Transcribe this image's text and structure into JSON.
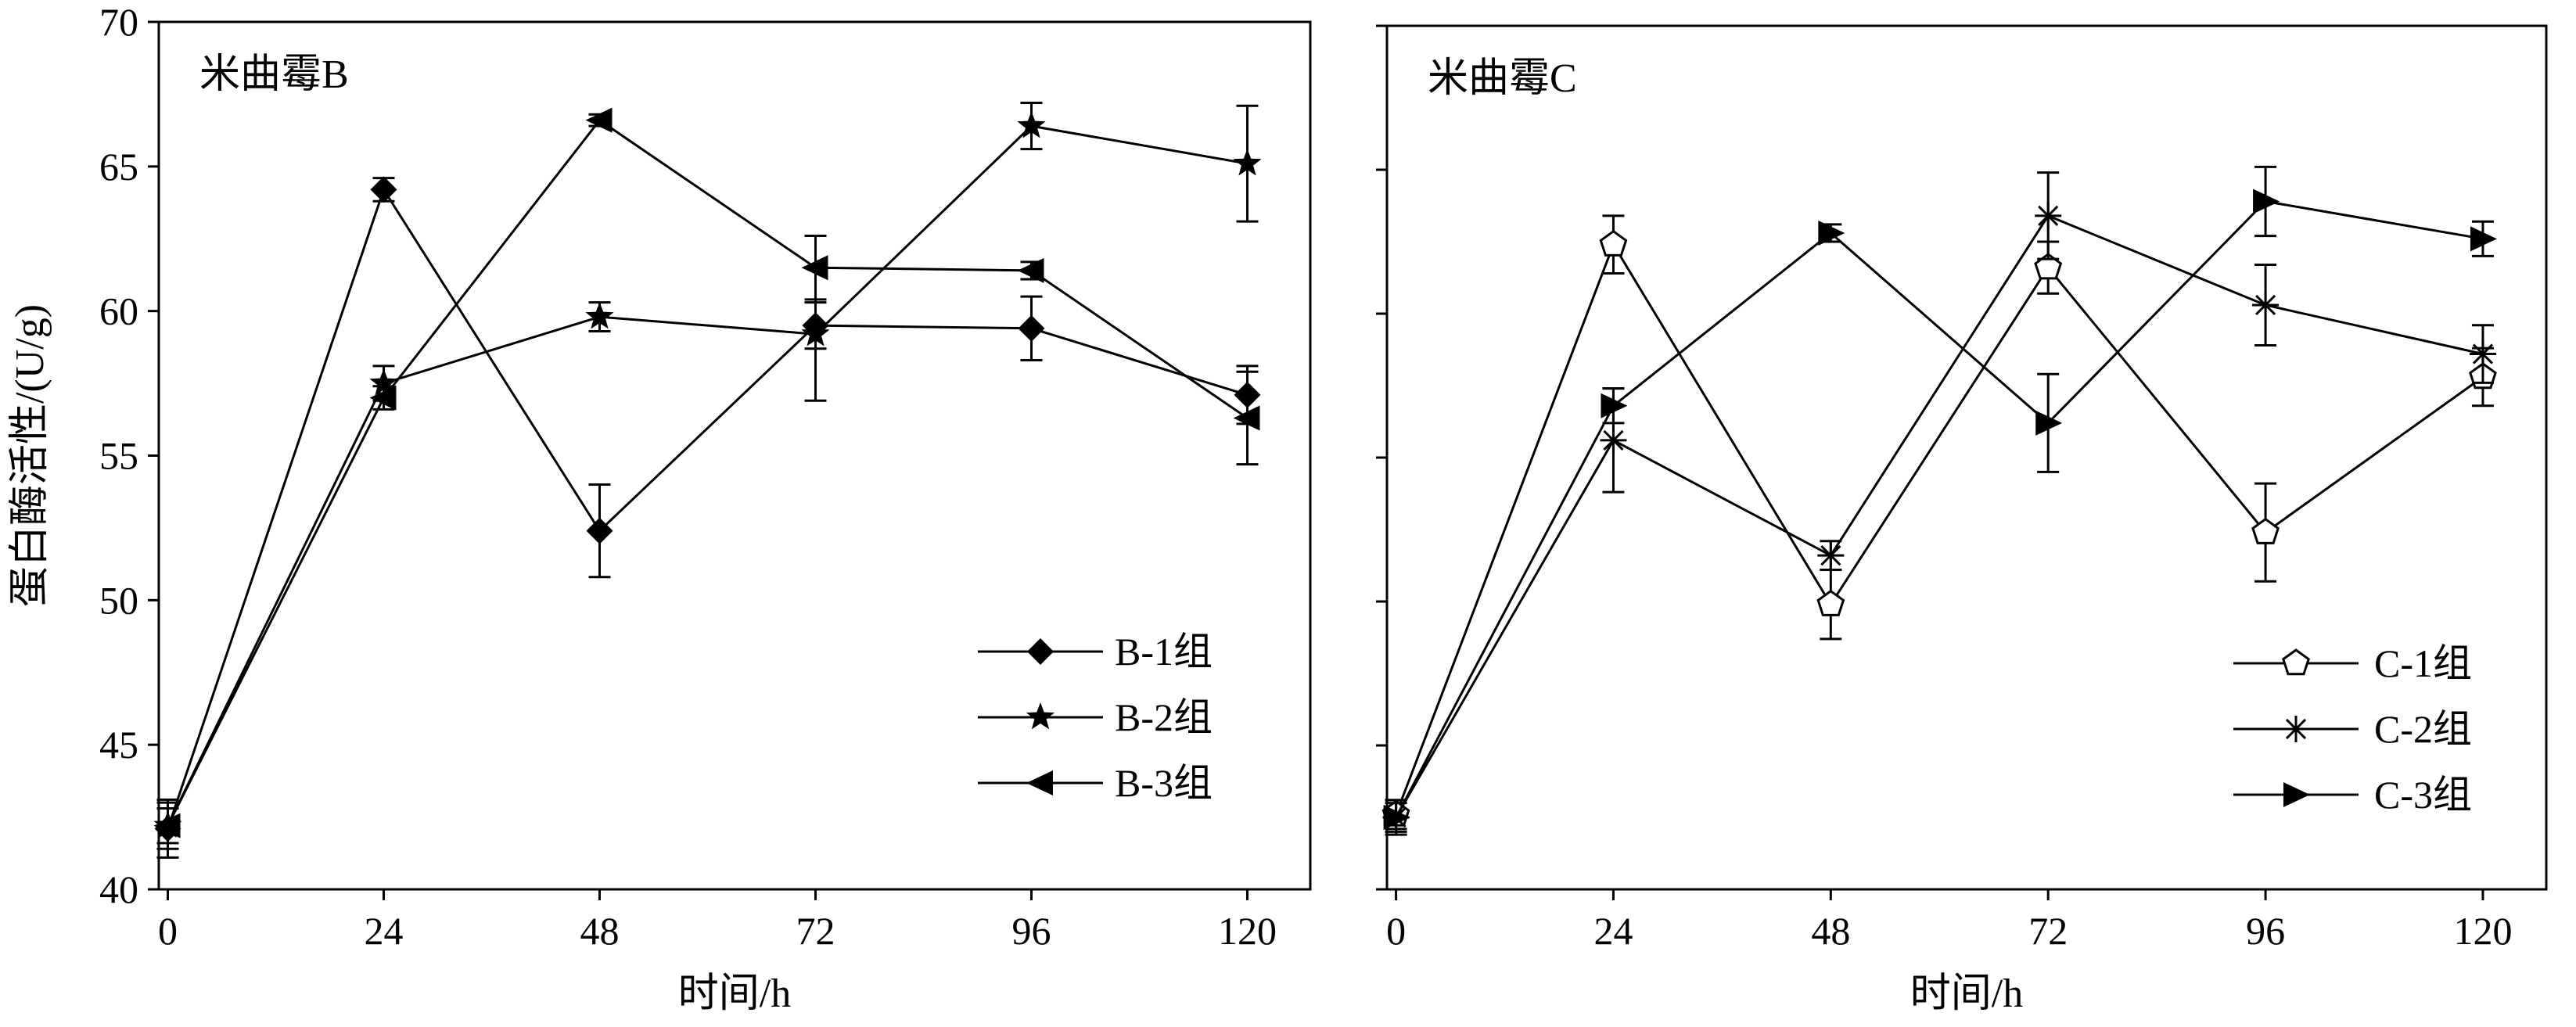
{
  "chart_data": [
    {
      "type": "line",
      "title": "米曲霉B",
      "xlabel": "时间/h",
      "ylabel": "蛋白酶活性/(U/g)",
      "x": [
        0,
        24,
        48,
        72,
        96,
        120
      ],
      "xlim": [
        -1,
        127
      ],
      "ylim": [
        40,
        70
      ],
      "yticks": [
        40,
        45,
        50,
        55,
        60,
        65,
        70
      ],
      "xticks": [
        0,
        24,
        48,
        72,
        96,
        120
      ],
      "legend_position": "bottom-right",
      "series": [
        {
          "name": "B-1组",
          "marker": "diamond",
          "values": [
            42.1,
            64.2,
            52.4,
            59.5,
            59.4,
            57.1
          ],
          "errors": [
            1.0,
            0.4,
            1.6,
            0.8,
            1.1,
            1.0
          ]
        },
        {
          "name": "B-2组",
          "marker": "star",
          "values": [
            42.2,
            57.5,
            59.8,
            59.2,
            66.4,
            65.1
          ],
          "errors": [
            0.8,
            0.6,
            0.5,
            2.3,
            0.8,
            2.0
          ]
        },
        {
          "name": "B-3组",
          "marker": "triangle-left",
          "values": [
            42.2,
            57.0,
            66.6,
            61.5,
            61.4,
            56.3
          ],
          "errors": [
            0.6,
            0.4,
            0.2,
            1.1,
            0.3,
            1.6
          ]
        }
      ]
    },
    {
      "type": "line",
      "title": "米曲霉C",
      "xlabel": "时间/h",
      "ylabel": "",
      "x": [
        0,
        24,
        48,
        72,
        96,
        120
      ],
      "xlim": [
        -1,
        127
      ],
      "ylim": [
        40,
        70
      ],
      "yticks": [
        40,
        45,
        50,
        55,
        60,
        65,
        70
      ],
      "xticks": [
        0,
        24,
        48,
        72,
        96,
        120
      ],
      "legend_position": "bottom-right",
      "series": [
        {
          "name": "C-1组",
          "marker": "pentagon",
          "values": [
            42.6,
            62.4,
            49.9,
            61.6,
            52.4,
            57.8
          ],
          "errors": [
            0.5,
            1.0,
            1.2,
            0.9,
            1.7,
            1.0
          ]
        },
        {
          "name": "C-2组",
          "marker": "asterisk",
          "values": [
            42.5,
            55.6,
            51.6,
            63.4,
            60.3,
            58.6
          ],
          "errors": [
            0.5,
            1.8,
            0.5,
            1.5,
            1.4,
            1.0
          ]
        },
        {
          "name": "C-3组",
          "marker": "triangle-right",
          "values": [
            42.5,
            56.8,
            62.8,
            56.2,
            63.9,
            62.6
          ],
          "errors": [
            0.6,
            0.6,
            0.3,
            1.7,
            1.2,
            0.6
          ]
        }
      ]
    }
  ]
}
